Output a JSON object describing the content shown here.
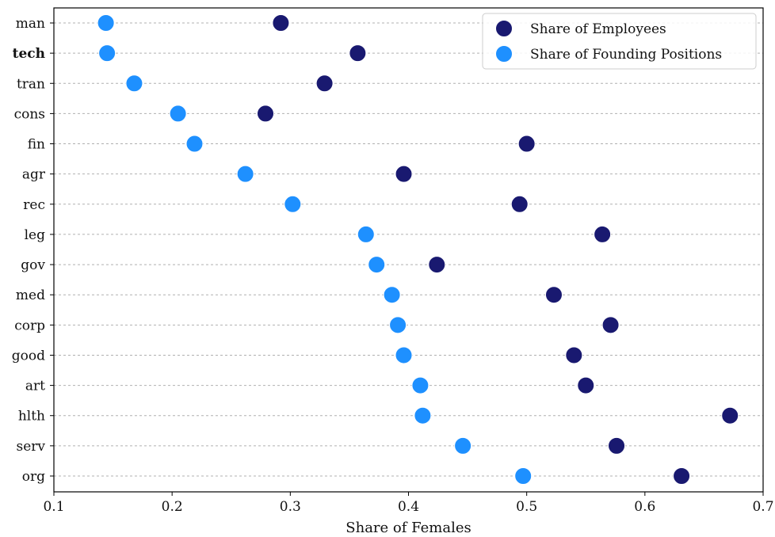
{
  "chart_data": {
    "type": "scatter",
    "orientation": "horizontal",
    "title": "",
    "xlabel": "Share of Females",
    "ylabel": "",
    "xlim": [
      0.1,
      0.7
    ],
    "x_ticks": [
      "0.1",
      "0.2",
      "0.3",
      "0.4",
      "0.5",
      "0.6",
      "0.7"
    ],
    "grid": "horizontal dashed",
    "legend_position": "top-right",
    "highlight_category": "tech",
    "highlight_color": "#ff0000",
    "categories": [
      "man",
      "tech",
      "tran",
      "cons",
      "fin",
      "agr",
      "rec",
      "leg",
      "gov",
      "med",
      "corp",
      "good",
      "art",
      "hlth",
      "serv",
      "org"
    ],
    "series": [
      {
        "name": "Share of Employees",
        "color": "#191970",
        "values": [
          0.292,
          0.357,
          0.329,
          0.279,
          0.5,
          0.396,
          0.494,
          0.564,
          0.424,
          0.523,
          0.571,
          0.54,
          0.55,
          0.672,
          0.576,
          0.631
        ]
      },
      {
        "name": "Share of Founding Positions",
        "color": "#1e90ff",
        "values": [
          0.144,
          0.145,
          0.168,
          0.205,
          0.219,
          0.262,
          0.302,
          0.364,
          0.373,
          0.386,
          0.391,
          0.396,
          0.41,
          0.412,
          0.446,
          0.497
        ]
      }
    ]
  }
}
